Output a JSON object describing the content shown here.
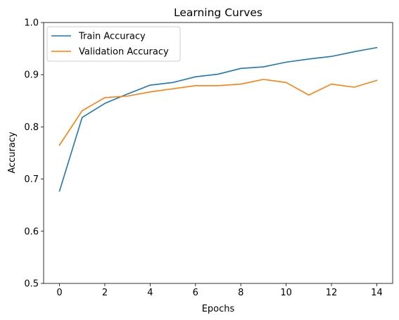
{
  "chart_data": {
    "type": "line",
    "title": "Learning Curves",
    "xlabel": "Epochs",
    "ylabel": "Accuracy",
    "xlim": [
      -0.7,
      14.7
    ],
    "ylim": [
      0.5,
      1.0
    ],
    "xticks": [
      0,
      2,
      4,
      6,
      8,
      10,
      12,
      14
    ],
    "yticks": [
      0.5,
      0.6,
      0.7,
      0.8,
      0.9,
      1.0
    ],
    "ytick_labels": [
      "0.5",
      "0.6",
      "0.7",
      "0.8",
      "0.9",
      "1.0"
    ],
    "grid": false,
    "legend_position": "upper-left",
    "x": [
      0,
      1,
      2,
      3,
      4,
      5,
      6,
      7,
      8,
      9,
      10,
      11,
      12,
      13,
      14
    ],
    "series": [
      {
        "name": "Train Accuracy",
        "color": "#1f77b4",
        "values": [
          0.677,
          0.818,
          0.845,
          0.863,
          0.88,
          0.885,
          0.896,
          0.901,
          0.912,
          0.915,
          0.924,
          0.93,
          0.935,
          0.944,
          0.952
        ]
      },
      {
        "name": "Validation Accuracy",
        "color": "#ff7f0e",
        "values": [
          0.765,
          0.831,
          0.856,
          0.859,
          0.867,
          0.873,
          0.879,
          0.879,
          0.882,
          0.891,
          0.885,
          0.861,
          0.882,
          0.876,
          0.889
        ]
      }
    ]
  }
}
